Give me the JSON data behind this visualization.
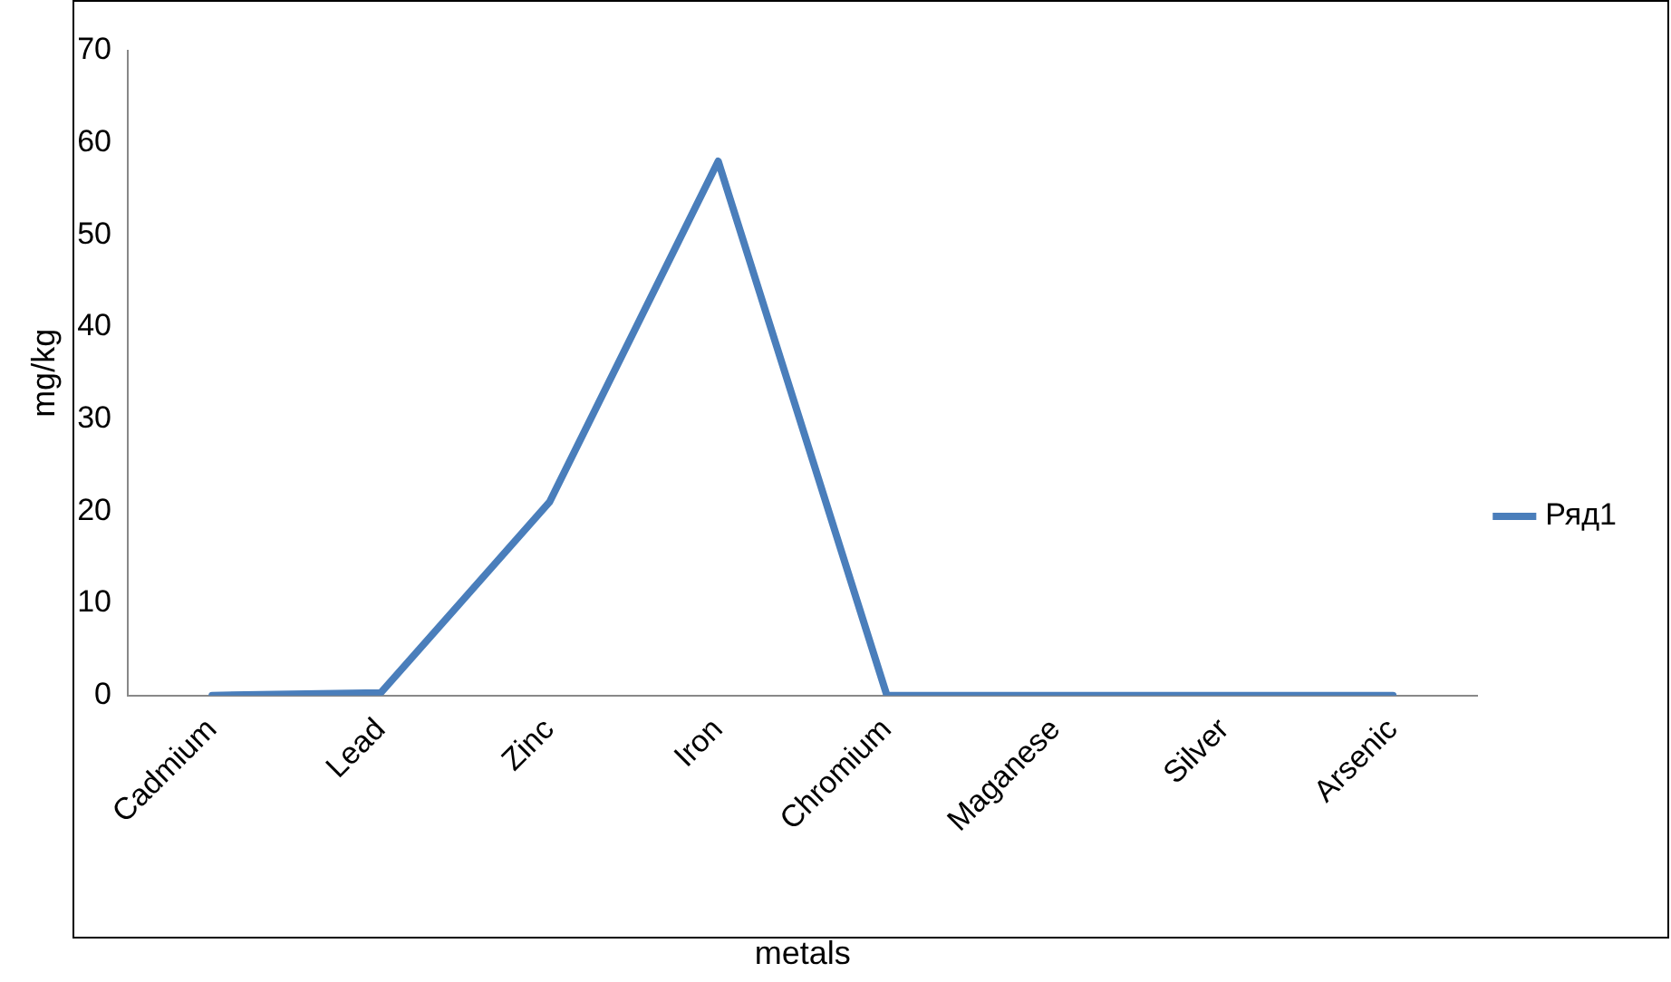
{
  "chart_data": {
    "type": "line",
    "xlabel": "metals",
    "ylabel": "mg/kg",
    "categories": [
      "Cadmium",
      "Lead",
      "Zinc",
      "Iron",
      "Chromium",
      "Maganese",
      "Silver",
      "Arsenic"
    ],
    "series": [
      {
        "name": "Ряд1",
        "color": "#4a7ebb",
        "values": [
          0,
          0.3,
          21,
          58,
          0,
          0,
          0,
          0
        ]
      }
    ],
    "ylim": [
      0,
      70
    ],
    "yticks": [
      0,
      10,
      20,
      30,
      40,
      50,
      60,
      70
    ],
    "grid": false,
    "legend": "right",
    "marker": "none",
    "line_style": "solid"
  }
}
